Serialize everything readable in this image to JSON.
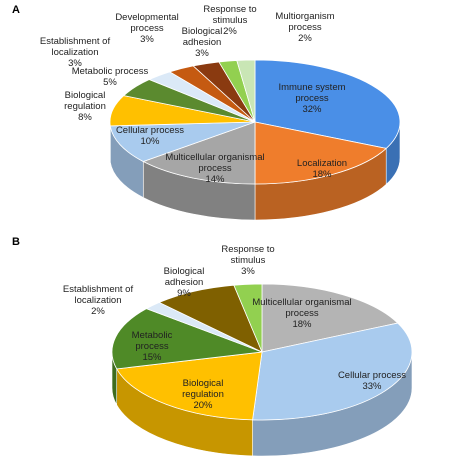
{
  "chart_data": [
    {
      "type": "pie",
      "panel": "A",
      "categories": [
        "Immune system process",
        "Localization",
        "Multicellular organismal process",
        "Cellular process",
        "Biological regulation",
        "Metabolic process",
        "Establishment of localization",
        "Developmental process",
        "Biological adhesion",
        "Response to stimulus",
        "Multiorganism process"
      ],
      "values": [
        32,
        18,
        14,
        10,
        8,
        5,
        3,
        3,
        3,
        2,
        2
      ],
      "value_labels": [
        "32%",
        "18%",
        "14%",
        "10%",
        "8%",
        "5%",
        "3%",
        "3%",
        "3%",
        "2%",
        "2%"
      ],
      "colors": [
        "#4a8fe7",
        "#ef7d2c",
        "#a6a6a6",
        "#a9cbee",
        "#ffc000",
        "#5b8a2f",
        "#dbe9f7",
        "#c55a11",
        "#8a3a10",
        "#92d050",
        "#c9e6b5"
      ]
    },
    {
      "type": "pie",
      "panel": "B",
      "categories": [
        "Multicellular organismal process",
        "Cellular process",
        "Biological regulation",
        "Metabolic process",
        "Establishment of localization",
        "Biological adhesion",
        "Response to stimulus"
      ],
      "values": [
        18,
        33,
        20,
        15,
        2,
        9,
        3
      ],
      "value_labels": [
        "18%",
        "33%",
        "20%",
        "15%",
        "2%",
        "9%",
        "3%"
      ],
      "colors": [
        "#b4b4b4",
        "#a9cbee",
        "#ffc000",
        "#4f8a27",
        "#dbe9f7",
        "#7f6000",
        "#92d050"
      ]
    }
  ]
}
